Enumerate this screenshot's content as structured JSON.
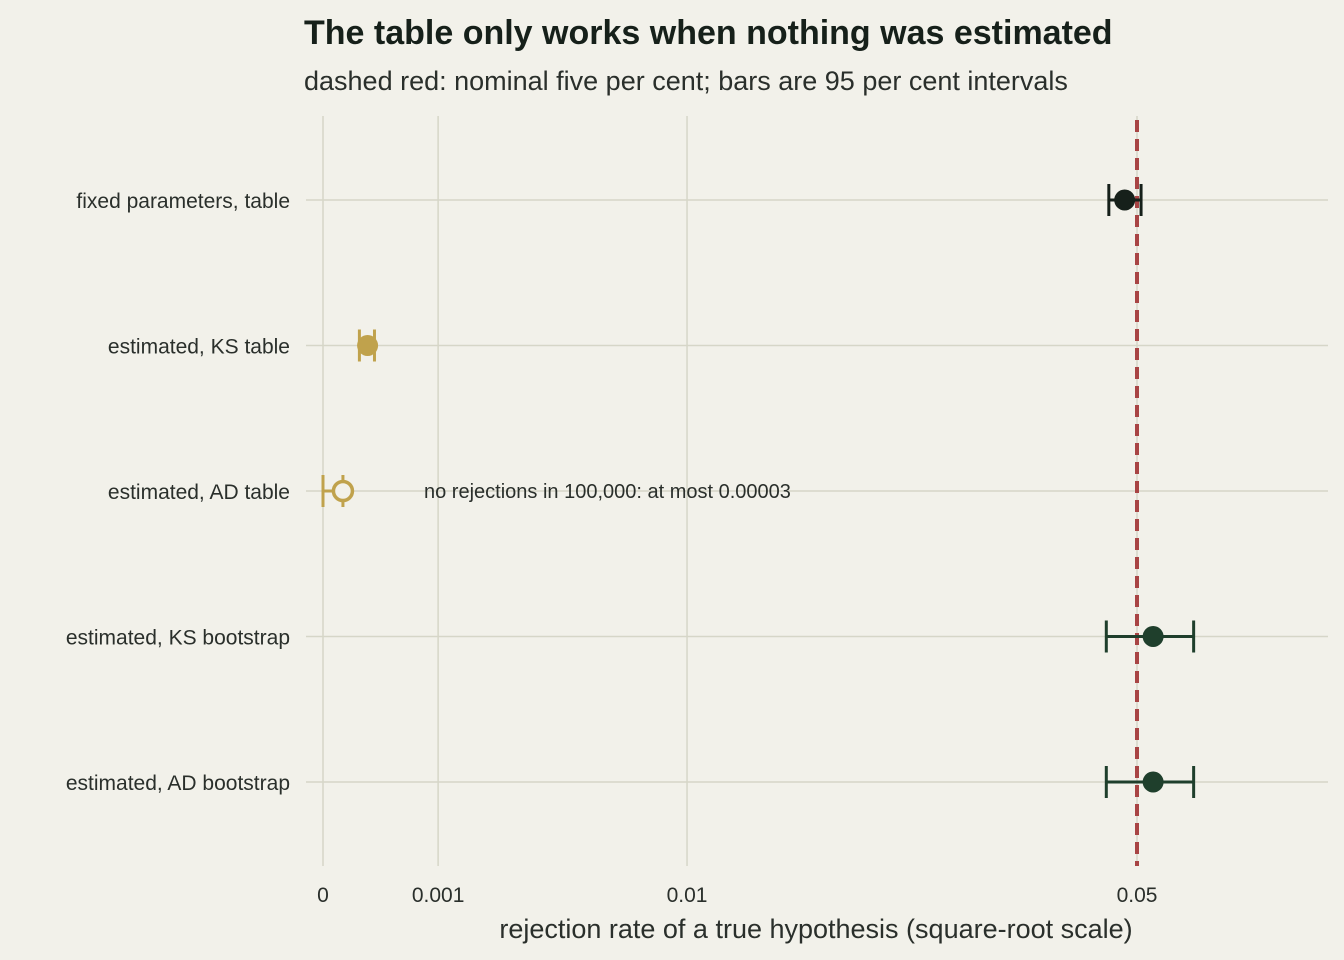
{
  "chart_data": {
    "type": "scatter",
    "title": "The table only works when nothing was estimated",
    "subtitle": "dashed red: nominal five per cent; bars are 95 per cent intervals",
    "xlabel": "rejection rate of a true hypothesis (square-root scale)",
    "x_scale": "sqrt",
    "xlim": [
      0,
      0.076
    ],
    "x_ticks": [
      {
        "value": 0,
        "label": "0"
      },
      {
        "value": 0.001,
        "label": "0.001"
      },
      {
        "value": 0.01,
        "label": "0.01"
      },
      {
        "value": 0.05,
        "label": "0.05"
      }
    ],
    "reference_line": {
      "value": 0.05,
      "color": "#a84444",
      "style": "dashed"
    },
    "categories": [
      "fixed parameters, table",
      "estimated, KS table",
      "estimated, AD table",
      "estimated, KS bootstrap",
      "estimated, AD bootstrap"
    ],
    "points": [
      {
        "category": "fixed parameters, table",
        "x": 0.0485,
        "lo": 0.0466,
        "hi": 0.0505,
        "color": "#16201a",
        "marker": "filled"
      },
      {
        "category": "estimated, KS table",
        "x": 0.00015,
        "lo": 0.0001,
        "hi": 0.0002,
        "color": "#c0a24c",
        "marker": "filled"
      },
      {
        "category": "estimated, AD table",
        "x": 3e-05,
        "lo": 0,
        "hi": 3e-05,
        "color": "#c0a24c",
        "marker": "open"
      },
      {
        "category": "estimated, KS bootstrap",
        "x": 0.052,
        "lo": 0.0463,
        "hi": 0.0572,
        "color": "#1f3f2c",
        "marker": "filled"
      },
      {
        "category": "estimated, AD bootstrap",
        "x": 0.052,
        "lo": 0.0463,
        "hi": 0.0572,
        "color": "#1f3f2c",
        "marker": "filled"
      }
    ],
    "annotations": [
      {
        "category": "estimated, AD table",
        "text": "no rejections in 100,000: at most 0.00003"
      }
    ],
    "grid": true,
    "legend": "none",
    "colors": {
      "background": "#f2f1ea",
      "grid": "#d6d6c8",
      "text": "#2a2f2b"
    }
  }
}
